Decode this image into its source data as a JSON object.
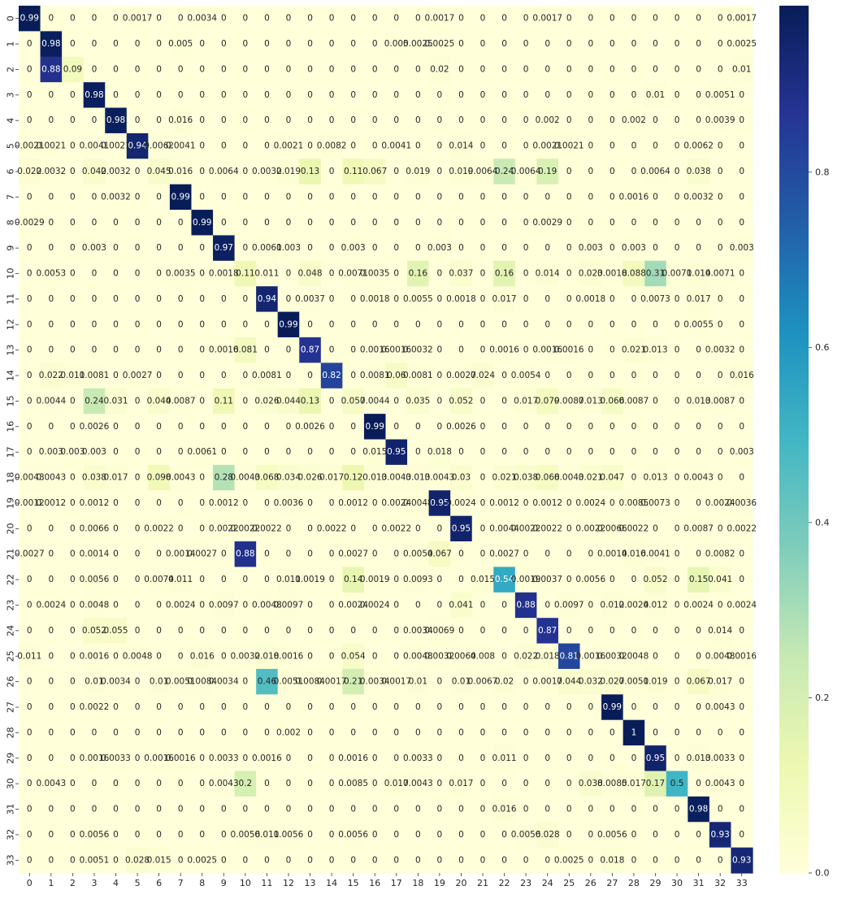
{
  "chart_data": {
    "type": "heatmap",
    "title": "",
    "xlabel": "",
    "ylabel": "",
    "x_categories": [
      "0",
      "1",
      "2",
      "3",
      "4",
      "5",
      "6",
      "7",
      "8",
      "9",
      "10",
      "11",
      "12",
      "13",
      "14",
      "15",
      "16",
      "17",
      "18",
      "19",
      "20",
      "21",
      "22",
      "23",
      "24",
      "25",
      "26",
      "27",
      "28",
      "29",
      "30",
      "31",
      "32",
      "33"
    ],
    "y_categories": [
      "0",
      "1",
      "2",
      "3",
      "4",
      "5",
      "6",
      "7",
      "8",
      "9",
      "10",
      "11",
      "12",
      "13",
      "14",
      "15",
      "16",
      "17",
      "18",
      "19",
      "20",
      "21",
      "22",
      "23",
      "24",
      "25",
      "26",
      "27",
      "28",
      "29",
      "30",
      "31",
      "32",
      "33"
    ],
    "colormap": "YlGnBu",
    "colormap_stops": [
      "#ffffd9",
      "#edf8b1",
      "#c7e9b4",
      "#7fcdbb",
      "#41b6c4",
      "#1d91c0",
      "#225ea8",
      "#253494",
      "#081d58"
    ],
    "vmin": 0,
    "vmax": 0.99,
    "annotated": true,
    "grid": false,
    "colorbar": {
      "placement": "right",
      "ticks": [
        0.0,
        0.2,
        0.4,
        0.6,
        0.8
      ],
      "tick_labels": [
        "0.0",
        "0.2",
        "0.4",
        "0.6",
        "0.8"
      ]
    },
    "values": [
      [
        0.99,
        0,
        0,
        0,
        0,
        0.0017,
        0,
        0,
        0.0034,
        0,
        0,
        0,
        0,
        0,
        0,
        0,
        0,
        0,
        0,
        0.0017,
        0,
        0,
        0,
        0,
        0.0017,
        0,
        0,
        0,
        0,
        0,
        0,
        0,
        0,
        0.0017
      ],
      [
        0,
        0.98,
        0,
        0,
        0,
        0,
        0,
        0.005,
        0,
        0,
        0,
        0,
        0,
        0,
        0,
        0,
        0,
        0.005,
        0.0025,
        0.0025,
        0,
        0,
        0,
        0,
        0,
        0,
        0,
        0,
        0,
        0,
        0,
        0,
        0,
        0.0025
      ],
      [
        0,
        0.88,
        0.09,
        0,
        0,
        0,
        0,
        0,
        0,
        0,
        0,
        0,
        0,
        0,
        0,
        0,
        0,
        0,
        0,
        0.02,
        0,
        0,
        0,
        0,
        0,
        0,
        0,
        0,
        0,
        0,
        0,
        0,
        0,
        0.01
      ],
      [
        0,
        0,
        0,
        0.98,
        0,
        0,
        0,
        0,
        0,
        0,
        0,
        0,
        0,
        0,
        0,
        0,
        0,
        0,
        0,
        0,
        0,
        0,
        0,
        0,
        0,
        0,
        0,
        0,
        0,
        0.01,
        0,
        0,
        0.0051,
        0
      ],
      [
        0,
        0,
        0,
        0,
        0.98,
        0,
        0,
        0.016,
        0,
        0,
        0,
        0,
        0,
        0,
        0,
        0,
        0,
        0,
        0,
        0,
        0,
        0,
        0,
        0,
        0.002,
        0,
        0,
        0,
        0.002,
        0,
        0,
        0,
        0.0039,
        0
      ],
      [
        0.0021,
        0.0021,
        0,
        0.0041,
        0.0021,
        0.94,
        0.0062,
        0.0041,
        0,
        0,
        0,
        0,
        0.0021,
        0,
        0.0082,
        0,
        0,
        0.0041,
        0,
        0,
        0.014,
        0,
        0,
        0,
        0.0021,
        0.0021,
        0,
        0,
        0,
        0,
        0,
        0.0062,
        0,
        0
      ],
      [
        0.022,
        0.0032,
        0,
        0.042,
        0.0032,
        0,
        0.045,
        0.016,
        0,
        0.0064,
        0,
        0.0032,
        0.019,
        0.13,
        0,
        0.11,
        0.067,
        0,
        0.019,
        0,
        0.019,
        0.0064,
        0.24,
        0.0064,
        0.19,
        0,
        0,
        0,
        0,
        0.0064,
        0,
        0.038,
        0,
        0
      ],
      [
        0,
        0,
        0,
        0,
        0.0032,
        0,
        0,
        0.99,
        0,
        0,
        0,
        0,
        0,
        0,
        0,
        0,
        0,
        0,
        0,
        0,
        0,
        0,
        0,
        0,
        0,
        0,
        0,
        0,
        0.0016,
        0,
        0,
        0.0032,
        0,
        0
      ],
      [
        0.0029,
        0,
        0,
        0,
        0,
        0,
        0,
        0,
        0.99,
        0,
        0,
        0,
        0,
        0,
        0,
        0,
        0,
        0,
        0,
        0,
        0,
        0,
        0,
        0,
        0.0029,
        0,
        0,
        0,
        0,
        0,
        0,
        0,
        0,
        0
      ],
      [
        0,
        0,
        0,
        0.003,
        0,
        0,
        0,
        0,
        0,
        0.97,
        0,
        0.0061,
        0.003,
        0,
        0,
        0.003,
        0,
        0,
        0,
        0.003,
        0,
        0,
        0,
        0,
        0,
        0,
        0.003,
        0,
        0.003,
        0,
        0,
        0,
        0,
        0.003
      ],
      [
        0,
        0.0053,
        0,
        0,
        0,
        0,
        0,
        0.0035,
        0,
        0.0018,
        0.11,
        0.011,
        0,
        0.048,
        0,
        0.0071,
        0.0035,
        0,
        0.16,
        0,
        0.037,
        0,
        0.16,
        0,
        0.014,
        0,
        0.023,
        0.0018,
        0.088,
        0.31,
        0.0071,
        0.014,
        0.0071,
        0
      ],
      [
        0,
        0,
        0,
        0,
        0,
        0,
        0,
        0,
        0,
        0,
        0,
        0.94,
        0,
        0.0037,
        0,
        0,
        0.0018,
        0,
        0.0055,
        0,
        0.0018,
        0,
        0.017,
        0,
        0,
        0,
        0.0018,
        0,
        0,
        0.0073,
        0,
        0.017,
        0,
        0
      ],
      [
        0,
        0,
        0,
        0,
        0,
        0,
        0,
        0,
        0,
        0,
        0,
        0,
        0.99,
        0,
        0,
        0,
        0,
        0,
        0,
        0,
        0,
        0,
        0,
        0,
        0,
        0,
        0,
        0,
        0,
        0,
        0,
        0.0055,
        0,
        0
      ],
      [
        0,
        0,
        0,
        0,
        0,
        0,
        0,
        0,
        0,
        0.0016,
        0.081,
        0,
        0,
        0.87,
        0,
        0,
        0.0016,
        0.0016,
        0.0032,
        0,
        0,
        0,
        0.0016,
        0,
        0.0016,
        0.0016,
        0,
        0,
        0.021,
        0.013,
        0,
        0,
        0.0032,
        0
      ],
      [
        0,
        0.022,
        0.011,
        0.0081,
        0,
        0.0027,
        0,
        0,
        0,
        0,
        0,
        0.0081,
        0,
        0,
        0.82,
        0,
        0.0081,
        0.06,
        0.0081,
        0,
        0.0027,
        0.024,
        0,
        0.0054,
        0,
        0,
        0,
        0,
        0,
        0,
        0,
        0,
        0,
        0.016
      ],
      [
        0,
        0.0044,
        0,
        0.24,
        0.031,
        0,
        0.044,
        0.0087,
        0,
        0.11,
        0,
        0.026,
        0.044,
        0.13,
        0,
        0.057,
        0.0044,
        0,
        0.035,
        0,
        0.052,
        0,
        0,
        0.017,
        0.079,
        0.0087,
        0.013,
        0.066,
        0.0087,
        0,
        0,
        0.013,
        0.0087,
        0
      ],
      [
        0,
        0,
        0,
        0.0026,
        0,
        0,
        0,
        0,
        0,
        0,
        0,
        0,
        0,
        0.0026,
        0,
        0,
        0.99,
        0,
        0,
        0,
        0.0026,
        0,
        0,
        0,
        0,
        0,
        0,
        0,
        0,
        0,
        0,
        0,
        0,
        0
      ],
      [
        0,
        0.003,
        0.003,
        0.003,
        0,
        0,
        0,
        0,
        0.0061,
        0,
        0,
        0,
        0,
        0,
        0,
        0,
        0.015,
        0.95,
        0,
        0.018,
        0,
        0,
        0,
        0,
        0,
        0,
        0,
        0,
        0,
        0,
        0,
        0,
        0,
        0.003
      ],
      [
        0.0043,
        0.0043,
        0,
        0.038,
        0.017,
        0,
        0.098,
        0.0043,
        0,
        0.28,
        0.0043,
        0.068,
        0.034,
        0.026,
        0.017,
        0.12,
        0.013,
        0.0043,
        0.013,
        0.0043,
        0.03,
        0,
        0.021,
        0.038,
        0.068,
        0.0043,
        0.021,
        0.047,
        0,
        0.013,
        0,
        0.0043,
        0,
        0
      ],
      [
        0.0012,
        0.0012,
        0,
        0.0012,
        0,
        0,
        0,
        0,
        0,
        0.0012,
        0,
        0,
        0.0036,
        0,
        0,
        0.0012,
        0,
        0.0024,
        0.0048,
        0.95,
        0.0024,
        0,
        0.0012,
        0,
        0.0012,
        0,
        0.0024,
        0,
        0.0085,
        0.0073,
        0,
        0,
        0.0024,
        0.0036
      ],
      [
        0,
        0,
        0,
        0.0066,
        0,
        0,
        0.0022,
        0,
        0,
        0.0022,
        0.0022,
        0.0022,
        0,
        0,
        0.0022,
        0,
        0,
        0.0022,
        0,
        0,
        0.95,
        0,
        0.0044,
        0.0022,
        0.0022,
        0,
        0.0022,
        0.0066,
        0.0022,
        0,
        0,
        0.0087,
        0,
        0.0022
      ],
      [
        0.0027,
        0,
        0,
        0.0014,
        0,
        0,
        0,
        0.0014,
        0.0027,
        0,
        0.88,
        0,
        0,
        0,
        0,
        0.0027,
        0,
        0,
        0.0054,
        0.067,
        0,
        0,
        0.0027,
        0,
        0,
        0,
        0,
        0.0014,
        0.016,
        0.0041,
        0,
        0,
        0.0082,
        0
      ],
      [
        0,
        0,
        0,
        0.0056,
        0,
        0,
        0.0074,
        0.011,
        0,
        0,
        0,
        0,
        0.011,
        0.0019,
        0,
        0.14,
        0.0019,
        0,
        0.0093,
        0,
        0,
        0.015,
        0.54,
        0.0019,
        0.0037,
        0,
        0.0056,
        0,
        0,
        0.052,
        0,
        0.15,
        0.041,
        0
      ],
      [
        0,
        0.0024,
        0,
        0.0048,
        0,
        0,
        0,
        0.0024,
        0,
        0.0097,
        0,
        0.0048,
        0.0097,
        0,
        0,
        0.0024,
        0.0024,
        0,
        0,
        0,
        0.041,
        0,
        0,
        0.88,
        0,
        0.0097,
        0,
        0.012,
        0.0024,
        0.012,
        0,
        0.0024,
        0,
        0.0024
      ],
      [
        0,
        0,
        0,
        0.052,
        0.055,
        0,
        0,
        0,
        0,
        0,
        0,
        0,
        0,
        0,
        0,
        0,
        0,
        0,
        0.0034,
        0.0069,
        0,
        0,
        0,
        0,
        0.87,
        0,
        0,
        0,
        0,
        0,
        0,
        0,
        0.014,
        0
      ],
      [
        0.011,
        0,
        0,
        0.0016,
        0,
        0.0048,
        0,
        0,
        0.016,
        0,
        0.0032,
        0.018,
        0.0016,
        0,
        0,
        0.054,
        0,
        0,
        0.0048,
        0.0032,
        0.0064,
        0.008,
        0,
        0.022,
        0.018,
        0.81,
        0.0016,
        0.0032,
        0.0048,
        0,
        0,
        0,
        0.0048,
        0.0016
      ],
      [
        0,
        0,
        0,
        0.01,
        0.0034,
        0,
        0.01,
        0.0051,
        0.0084,
        0.0034,
        0,
        0.46,
        0.0051,
        0.0084,
        0.0017,
        0.21,
        0.0034,
        0.0017,
        0.01,
        0,
        0.01,
        0.0067,
        0.02,
        0,
        0.0017,
        0.044,
        0.032,
        0.027,
        0.0051,
        0.019,
        0,
        0.067,
        0.017,
        0
      ],
      [
        0,
        0,
        0,
        0.0022,
        0,
        0,
        0,
        0,
        0,
        0,
        0,
        0,
        0,
        0,
        0,
        0,
        0,
        0,
        0,
        0,
        0,
        0,
        0,
        0,
        0,
        0,
        0,
        0.99,
        0,
        0,
        0,
        0,
        0.0043,
        0
      ],
      [
        0,
        0,
        0,
        0,
        0,
        0,
        0,
        0,
        0,
        0,
        0,
        0,
        0.002,
        0,
        0,
        0,
        0,
        0,
        0,
        0,
        0,
        0,
        0,
        0,
        0,
        0,
        0,
        0,
        1,
        0,
        0,
        0,
        0,
        0
      ],
      [
        0,
        0,
        0,
        0.0016,
        0.0033,
        0,
        0.0016,
        0.0016,
        0,
        0.0033,
        0,
        0.0016,
        0,
        0,
        0,
        0.0016,
        0,
        0,
        0.0033,
        0,
        0,
        0,
        0.011,
        0,
        0,
        0,
        0,
        0,
        0,
        0.95,
        0,
        0.013,
        0.0033,
        0
      ],
      [
        0,
        0.0043,
        0,
        0,
        0,
        0,
        0,
        0,
        0,
        0.0043,
        0.2,
        0,
        0,
        0,
        0,
        0.0085,
        0,
        0.017,
        0.0043,
        0,
        0.017,
        0,
        0,
        0,
        0,
        0,
        0.038,
        0.0085,
        0.017,
        0.17,
        0.5,
        0,
        0.0043,
        0
      ],
      [
        0,
        0,
        0,
        0,
        0,
        0,
        0,
        0,
        0,
        0,
        0,
        0,
        0,
        0,
        0,
        0,
        0,
        0,
        0,
        0,
        0,
        0,
        0.016,
        0,
        0,
        0,
        0,
        0,
        0,
        0,
        0,
        0.98,
        0,
        0
      ],
      [
        0,
        0,
        0,
        0.0056,
        0,
        0,
        0,
        0,
        0,
        0,
        0.0056,
        0.011,
        0.0056,
        0,
        0,
        0.0056,
        0,
        0,
        0,
        0,
        0,
        0,
        0,
        0.0056,
        0.028,
        0,
        0,
        0.0056,
        0,
        0,
        0,
        0,
        0.93,
        0
      ],
      [
        0,
        0,
        0,
        0.0051,
        0,
        0.028,
        0.015,
        0,
        0.0025,
        0,
        0,
        0,
        0,
        0,
        0,
        0,
        0,
        0,
        0,
        0,
        0,
        0,
        0,
        0,
        0,
        0.0025,
        0,
        0.018,
        0,
        0,
        0,
        0,
        0,
        0.93
      ]
    ]
  }
}
